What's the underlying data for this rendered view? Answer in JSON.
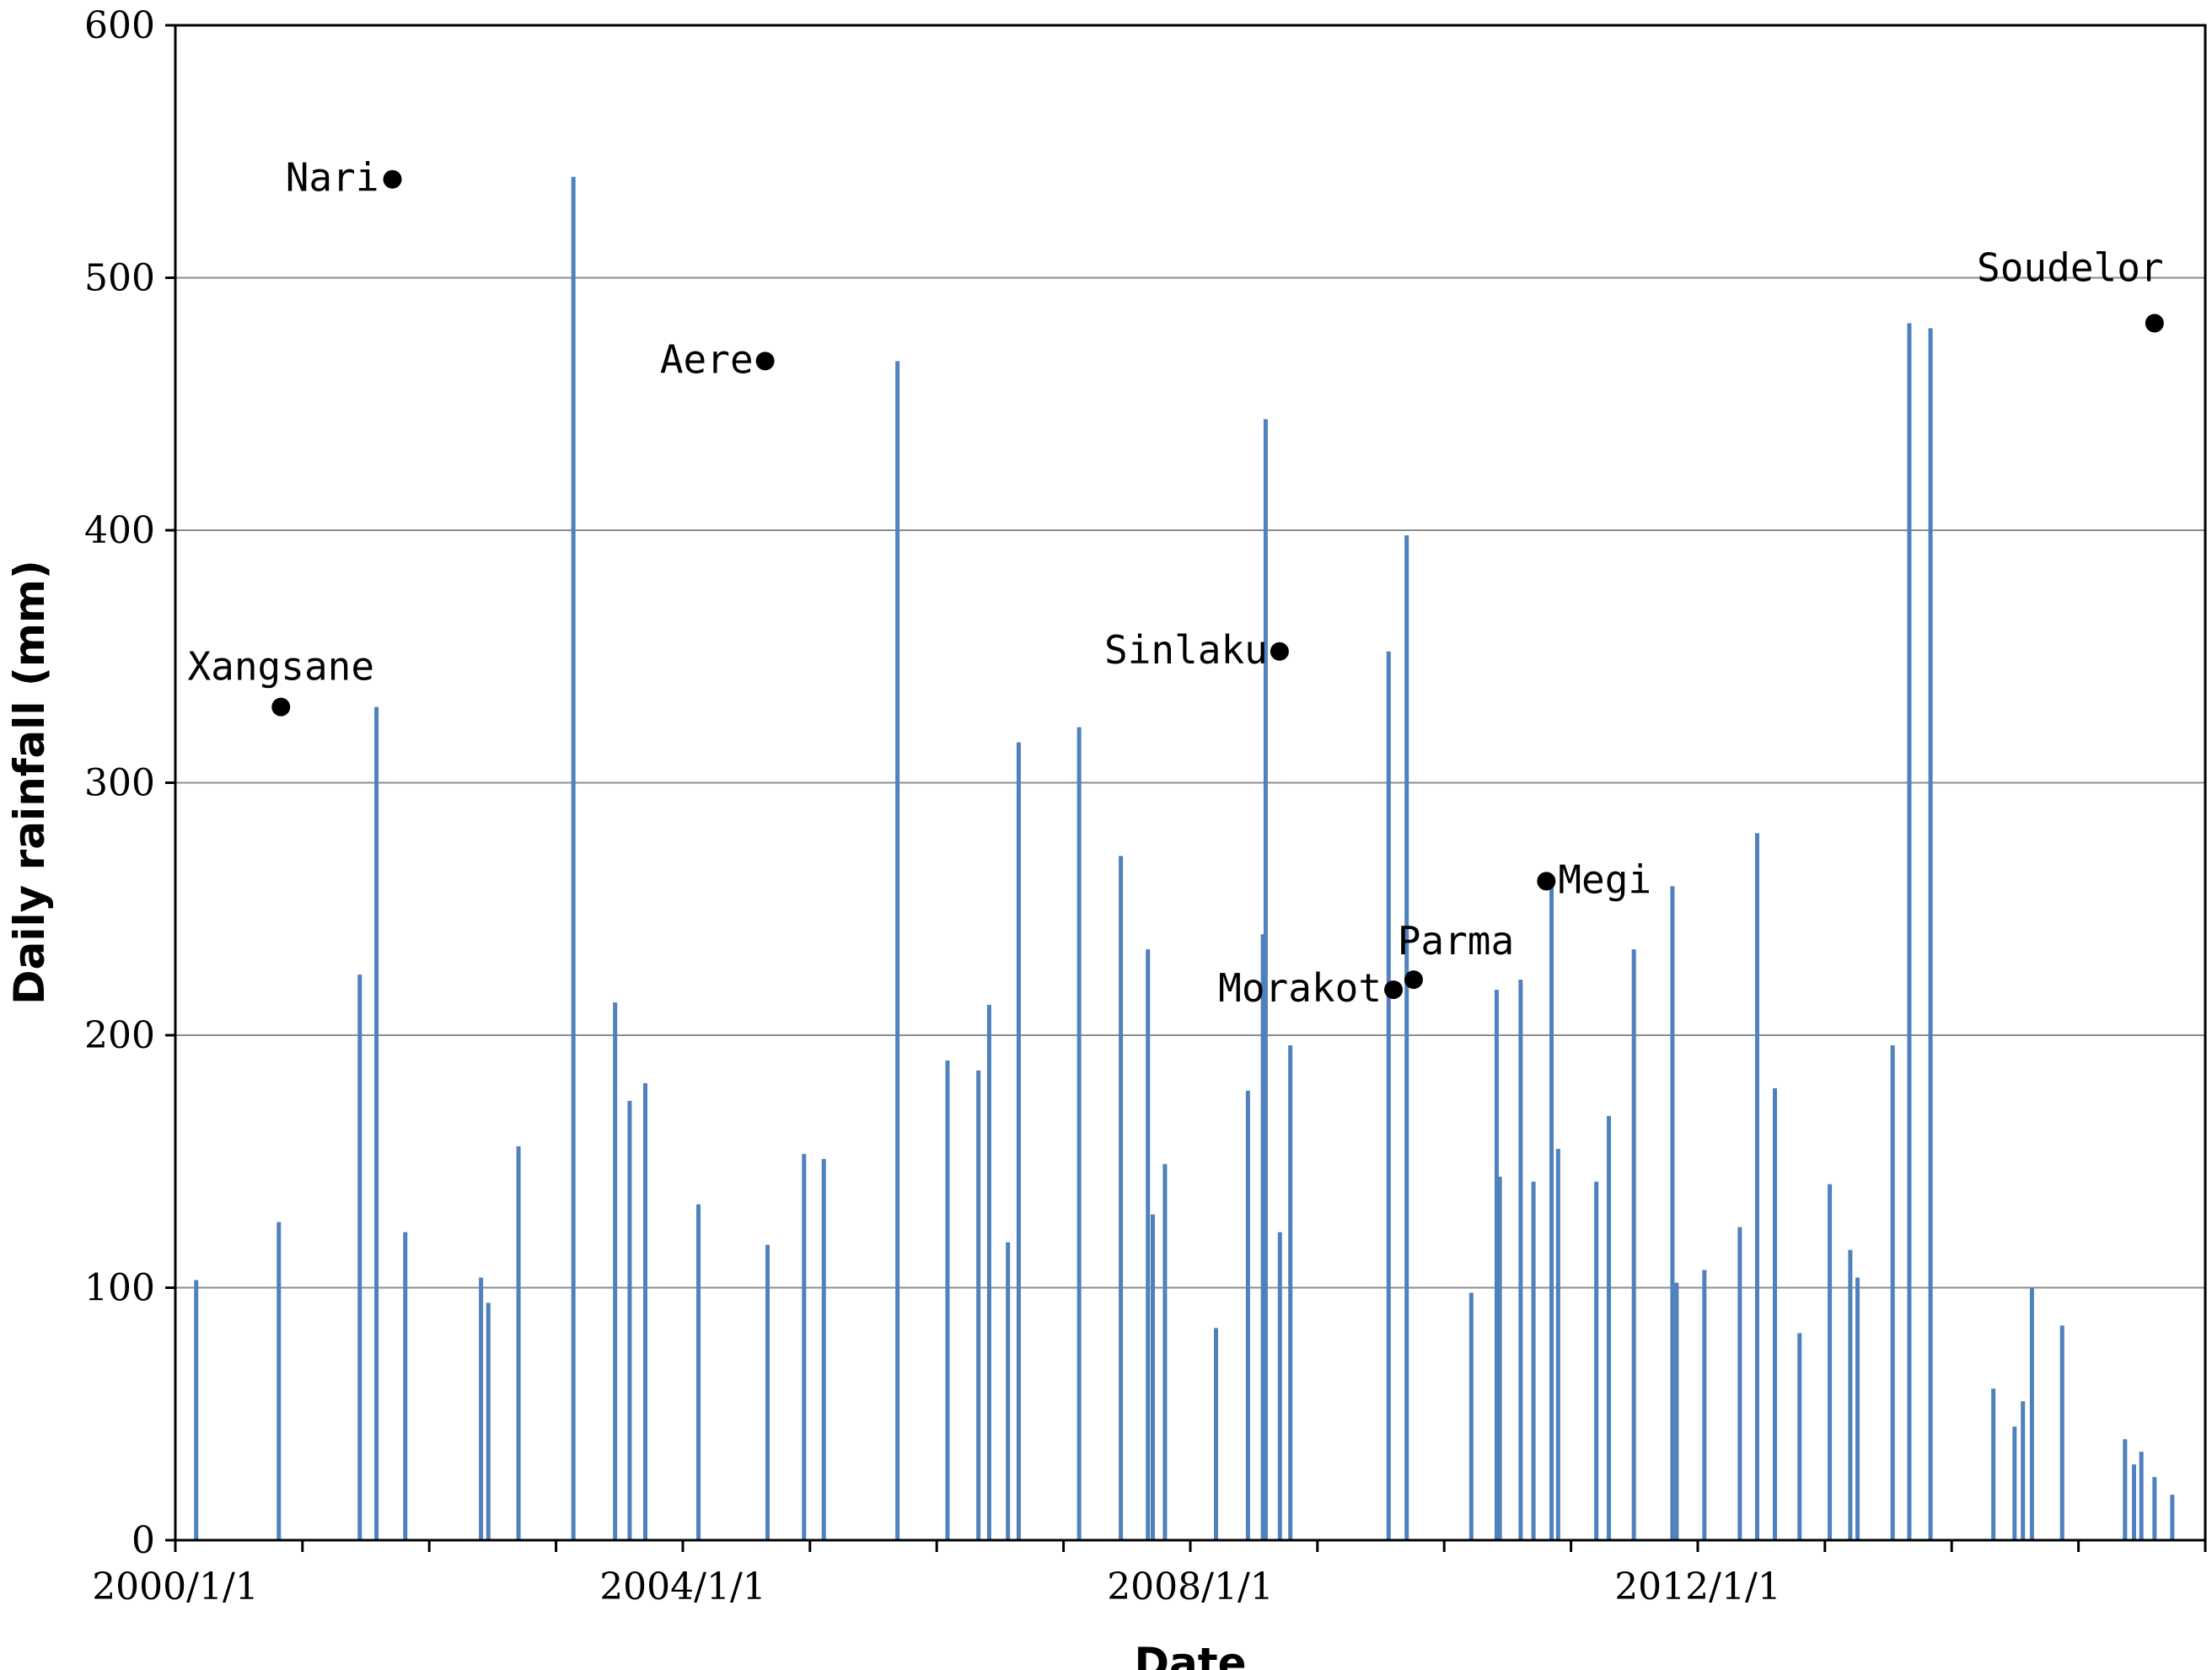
{
  "chart_data": {
    "type": "line",
    "title": "",
    "xlabel": "Date",
    "ylabel": "Daily rainfall (mm)",
    "xlim": [
      "2000-01-01",
      "2016-01-01"
    ],
    "ylim": [
      0,
      600
    ],
    "grid": true,
    "legend": "none",
    "series_color": "#4f81bd",
    "y_ticks": [
      "0",
      "100",
      "200",
      "300",
      "400",
      "500",
      "600"
    ],
    "x_ticks": [
      {
        "date": "2000-01-01",
        "label": "2000/1/1"
      },
      {
        "date": "2004-01-01",
        "label": "2004/1/1"
      },
      {
        "date": "2008-01-01",
        "label": "2008/1/1"
      },
      {
        "date": "2012-01-01",
        "label": "2012/1/1"
      }
    ],
    "series": [
      {
        "x": [
          "2000-03-01",
          "2000-10-25",
          "2001-06-15",
          "2001-08-02",
          "2001-10-24",
          "2002-05-30",
          "2002-06-20",
          "2002-09-15",
          "2003-02-20",
          "2003-06-20",
          "2003-08-01",
          "2003-09-15",
          "2004-02-15",
          "2004-09-01",
          "2004-12-15",
          "2005-02-10",
          "2005-09-10",
          "2006-02-01",
          "2006-05-01",
          "2006-06-01",
          "2006-07-25",
          "2006-08-25",
          "2007-02-15",
          "2007-06-15",
          "2007-09-01",
          "2007-09-15",
          "2007-10-20",
          "2008-03-15",
          "2008-06-15",
          "2008-07-28",
          "2008-08-05",
          "2008-09-15",
          "2008-10-15",
          "2009-07-25",
          "2009-09-15",
          "2010-03-20",
          "2010-06-01",
          "2010-06-10",
          "2010-08-09",
          "2010-09-15",
          "2010-11-06",
          "2010-11-25",
          "2011-03-15",
          "2011-04-20",
          "2011-07-01",
          "2011-10-20",
          "2011-11-01",
          "2012-01-20",
          "2012-05-01",
          "2012-06-20",
          "2012-08-10",
          "2012-10-20",
          "2013-01-15",
          "2013-03-15",
          "2013-04-05",
          "2013-07-15",
          "2013-09-01",
          "2013-11-01",
          "2014-05-01",
          "2014-07-01",
          "2014-07-25",
          "2014-08-20",
          "2014-11-15",
          "2015-05-15",
          "2015-06-10",
          "2015-07-01",
          "2015-08-08",
          "2015-09-28"
        ],
        "y": [
          103,
          126,
          224,
          330,
          122,
          104,
          94,
          156,
          540,
          213,
          174,
          181,
          133,
          117,
          153,
          151,
          467,
          190,
          186,
          212,
          118,
          316,
          322,
          271,
          234,
          129,
          149,
          84,
          178,
          240,
          444,
          122,
          196,
          352,
          398,
          98,
          218,
          144,
          222,
          142,
          261,
          155,
          142,
          168,
          234,
          259,
          102,
          107,
          124,
          280,
          179,
          82,
          141,
          115,
          104,
          196,
          482,
          480,
          60,
          45,
          55,
          100,
          85,
          40,
          30,
          35,
          25,
          18
        ]
      }
    ],
    "annotations": [
      {
        "label": "Xangsane",
        "date": "2000-10-31",
        "value": 330
      },
      {
        "label": "Nari",
        "date": "2001-09-17",
        "value": 539
      },
      {
        "label": "Aere",
        "date": "2004-08-25",
        "value": 467
      },
      {
        "label": "Sinlaku",
        "date": "2008-09-14",
        "value": 352
      },
      {
        "label": "Morakot",
        "date": "2009-08-08",
        "value": 218
      },
      {
        "label": "Parma",
        "date": "2009-10-05",
        "value": 222
      },
      {
        "label": "Megi",
        "date": "2010-10-22",
        "value": 261
      },
      {
        "label": "Soudelor",
        "date": "2015-08-08",
        "value": 482
      }
    ]
  }
}
